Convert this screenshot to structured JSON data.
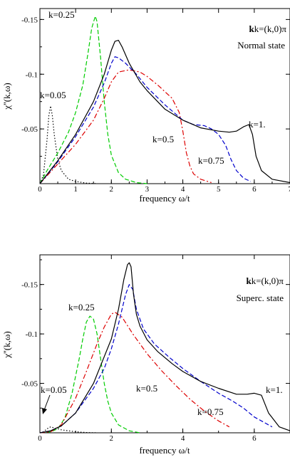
{
  "chart_data": [
    {
      "type": "line",
      "annotation_k": "k=(k,0)π",
      "annotation_state": "Normal state",
      "xlabel": "frequency ω/t",
      "ylabel": "χ''(k,ω)",
      "xlim": [
        0,
        7
      ],
      "ylim": [
        0,
        -0.16
      ],
      "xticks": [
        0,
        1,
        2,
        3,
        4,
        5,
        6,
        7
      ],
      "yticks": [
        -0.05,
        -0.1,
        -0.15
      ],
      "xtick_labels": [
        "0",
        "1",
        "2",
        "3",
        "4",
        "5",
        "6",
        "7"
      ],
      "ytick_labels": [
        "-0.05",
        "-0.1",
        "-0.15"
      ],
      "series": [
        {
          "name": "k=0.05",
          "color": "#000000",
          "dash": "dotted",
          "x": [
            0,
            0.1,
            0.2,
            0.25,
            0.3,
            0.35,
            0.4,
            0.5,
            0.6,
            0.8,
            1.0,
            1.3,
            1.6
          ],
          "y": [
            0,
            -0.008,
            -0.04,
            -0.062,
            -0.071,
            -0.062,
            -0.045,
            -0.022,
            -0.012,
            -0.004,
            -0.002,
            -0.0005,
            0
          ]
        },
        {
          "name": "k=0.25",
          "color": "#00cc00",
          "dash": "dashed",
          "x": [
            0,
            0.2,
            0.5,
            0.8,
            1.0,
            1.2,
            1.35,
            1.45,
            1.55,
            1.6,
            1.7,
            1.8,
            1.9,
            2.0,
            2.2,
            2.4,
            2.7,
            3.0
          ],
          "y": [
            0,
            -0.012,
            -0.028,
            -0.047,
            -0.065,
            -0.09,
            -0.12,
            -0.142,
            -0.153,
            -0.148,
            -0.115,
            -0.075,
            -0.045,
            -0.026,
            -0.01,
            -0.004,
            -0.001,
            0
          ]
        },
        {
          "name": "k=0.5",
          "color": "#dd0000",
          "dash": "dashdot",
          "x": [
            0,
            0.5,
            1.0,
            1.5,
            1.8,
            2.0,
            2.2,
            2.5,
            2.8,
            3.0,
            3.3,
            3.5,
            3.7,
            3.9,
            4.0,
            4.1,
            4.2,
            4.3,
            4.5,
            4.8
          ],
          "y": [
            0,
            -0.018,
            -0.036,
            -0.058,
            -0.078,
            -0.093,
            -0.102,
            -0.104,
            -0.102,
            -0.098,
            -0.09,
            -0.084,
            -0.078,
            -0.065,
            -0.048,
            -0.028,
            -0.016,
            -0.009,
            -0.004,
            -0.001
          ]
        },
        {
          "name": "k=0.75",
          "color": "#0000cc",
          "dash": "dashed",
          "x": [
            0,
            0.5,
            1.0,
            1.5,
            1.8,
            2.0,
            2.1,
            2.2,
            2.4,
            2.7,
            3.0,
            3.5,
            4.0,
            4.3,
            4.6,
            4.8,
            5.0,
            5.2,
            5.35,
            5.5,
            5.7,
            5.9
          ],
          "y": [
            0,
            -0.02,
            -0.043,
            -0.07,
            -0.092,
            -0.11,
            -0.116,
            -0.115,
            -0.11,
            -0.1,
            -0.088,
            -0.072,
            -0.058,
            -0.054,
            -0.053,
            -0.05,
            -0.045,
            -0.035,
            -0.022,
            -0.012,
            -0.005,
            -0.002
          ]
        },
        {
          "name": "k=1.",
          "color": "#000000",
          "dash": "solid",
          "x": [
            0,
            0.5,
            1.0,
            1.5,
            1.8,
            2.0,
            2.1,
            2.2,
            2.3,
            2.5,
            2.8,
            3.0,
            3.5,
            4.0,
            4.5,
            5.0,
            5.3,
            5.5,
            5.7,
            5.85,
            5.95,
            6.05,
            6.2,
            6.5,
            7.0
          ],
          "y": [
            0,
            -0.021,
            -0.045,
            -0.075,
            -0.1,
            -0.122,
            -0.13,
            -0.131,
            -0.125,
            -0.11,
            -0.093,
            -0.085,
            -0.068,
            -0.058,
            -0.051,
            -0.048,
            -0.047,
            -0.048,
            -0.052,
            -0.054,
            -0.045,
            -0.025,
            -0.012,
            -0.004,
            -0.001
          ]
        }
      ],
      "labels": [
        "k=0.05",
        "k=0.25",
        "k=0.5",
        "k=0.75",
        "k=1."
      ]
    },
    {
      "type": "line",
      "annotation_k": "k=(k,0)π",
      "annotation_state": "Superc. state",
      "xlabel": "frequency ω/t",
      "ylabel": "χ''(k,ω)",
      "xlim": [
        0,
        7
      ],
      "ylim": [
        0,
        -0.18
      ],
      "xticks": [
        0,
        2,
        4,
        6
      ],
      "yticks": [
        -0.05,
        -0.1,
        -0.15
      ],
      "xtick_labels": [
        "0",
        "2",
        "4",
        "6"
      ],
      "ytick_labels": [
        "-0.05",
        "-0.1",
        "-0.15"
      ],
      "series": [
        {
          "name": "k=0.05",
          "color": "#000000",
          "dash": "dotted",
          "x": [
            0,
            0.1,
            0.2,
            0.3,
            0.4,
            0.5,
            0.6,
            0.8,
            1.0,
            1.3,
            1.6
          ],
          "y": [
            0,
            -0.001,
            -0.004,
            -0.006,
            -0.005,
            -0.004,
            -0.003,
            -0.002,
            -0.001,
            -0.0003,
            0
          ]
        },
        {
          "name": "k=0.25",
          "color": "#00cc00",
          "dash": "dashed",
          "x": [
            0,
            0.3,
            0.5,
            0.7,
            0.9,
            1.1,
            1.2,
            1.3,
            1.4,
            1.5,
            1.6,
            1.7,
            1.8,
            1.9,
            2.0,
            2.2,
            2.5,
            2.8
          ],
          "y": [
            0,
            -0.001,
            -0.004,
            -0.015,
            -0.04,
            -0.075,
            -0.095,
            -0.112,
            -0.118,
            -0.115,
            -0.1,
            -0.075,
            -0.05,
            -0.032,
            -0.02,
            -0.008,
            -0.002,
            0
          ]
        },
        {
          "name": "k=0.5",
          "color": "#dd0000",
          "dash": "dashdot",
          "x": [
            0,
            0.3,
            0.6,
            1.0,
            1.3,
            1.6,
            1.8,
            2.0,
            2.1,
            2.3,
            2.6,
            3.0,
            3.4,
            3.8,
            4.2,
            4.6,
            5.0,
            5.3
          ],
          "y": [
            0,
            -0.001,
            -0.008,
            -0.035,
            -0.062,
            -0.09,
            -0.107,
            -0.12,
            -0.122,
            -0.117,
            -0.1,
            -0.08,
            -0.063,
            -0.048,
            -0.034,
            -0.022,
            -0.012,
            -0.006
          ]
        },
        {
          "name": "k=0.75",
          "color": "#0000cc",
          "dash": "dashed",
          "x": [
            0,
            0.3,
            0.6,
            1.0,
            1.5,
            1.8,
            2.0,
            2.2,
            2.3,
            2.4,
            2.5,
            2.6,
            2.7,
            2.9,
            3.2,
            3.6,
            4.0,
            4.5,
            5.0,
            5.4,
            5.7,
            6.0,
            6.2,
            6.5
          ],
          "y": [
            0,
            -0.002,
            -0.007,
            -0.02,
            -0.045,
            -0.065,
            -0.085,
            -0.11,
            -0.125,
            -0.14,
            -0.15,
            -0.145,
            -0.125,
            -0.105,
            -0.09,
            -0.077,
            -0.065,
            -0.052,
            -0.04,
            -0.032,
            -0.025,
            -0.016,
            -0.012,
            -0.006
          ]
        },
        {
          "name": "k=1.",
          "color": "#000000",
          "dash": "solid",
          "x": [
            0,
            0.3,
            0.6,
            1.0,
            1.5,
            2.0,
            2.2,
            2.35,
            2.45,
            2.5,
            2.55,
            2.62,
            2.7,
            2.8,
            3.0,
            3.3,
            3.7,
            4.0,
            4.5,
            5.0,
            5.5,
            5.8,
            6.0,
            6.2,
            6.4,
            6.7,
            7.0
          ],
          "y": [
            0,
            -0.002,
            -0.007,
            -0.02,
            -0.05,
            -0.095,
            -0.125,
            -0.155,
            -0.17,
            -0.172,
            -0.168,
            -0.14,
            -0.12,
            -0.108,
            -0.094,
            -0.082,
            -0.07,
            -0.062,
            -0.052,
            -0.045,
            -0.039,
            -0.039,
            -0.04,
            -0.038,
            -0.02,
            -0.006,
            -0.002
          ]
        }
      ],
      "labels": [
        "k=0.05",
        "k=0.25",
        "k=0.5",
        "k=0.75",
        "k=1."
      ]
    }
  ]
}
